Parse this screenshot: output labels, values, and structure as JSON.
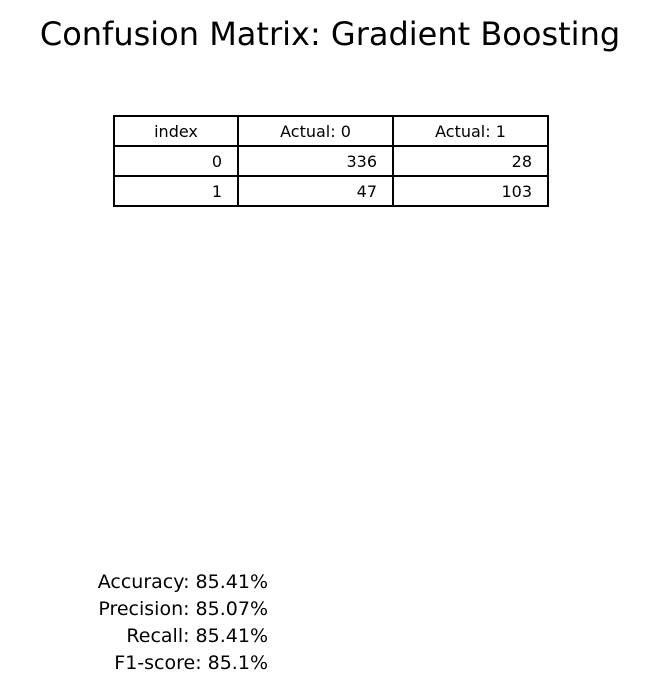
{
  "chart_data": {
    "type": "table",
    "title": "Confusion Matrix: Gradient Boosting",
    "columns": [
      "index",
      "Actual: 0",
      "Actual: 1"
    ],
    "rows": [
      {
        "index": "0",
        "actual_0": "336",
        "actual_1": "28"
      },
      {
        "index": "1",
        "actual_0": "47",
        "actual_1": "103"
      }
    ],
    "matrix": [
      [
        336,
        28
      ],
      [
        47,
        103
      ]
    ]
  },
  "metrics": {
    "accuracy": "Accuracy: 85.41%",
    "precision": "Precision: 85.07%",
    "recall": "Recall: 85.41%",
    "f1": "F1-score: 85.1%"
  }
}
